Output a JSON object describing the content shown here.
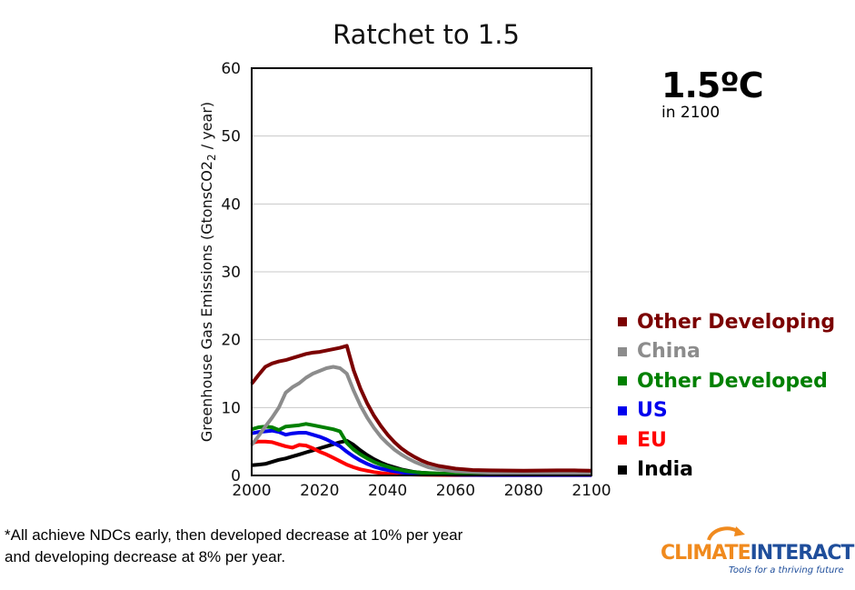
{
  "chart_data": {
    "type": "line",
    "title": "Ratchet to 1.5",
    "xlabel": "",
    "ylabel": "Greenhouse Gas Emissions  (GtonsCO2e / year)",
    "xlim": [
      2000,
      2100
    ],
    "ylim": [
      0,
      60
    ],
    "x_ticks": [
      "2000",
      "2020",
      "2040",
      "2060",
      "2080",
      "2100"
    ],
    "y_ticks": [
      "0",
      "10",
      "20",
      "30",
      "40",
      "50",
      "60"
    ],
    "grid": "horizontal",
    "legend_position": "right",
    "series": [
      {
        "name": "Other Developing",
        "color": "#7b0000",
        "points": [
          [
            2000,
            13.5
          ],
          [
            2002,
            14.8
          ],
          [
            2004,
            16
          ],
          [
            2006,
            16.5
          ],
          [
            2008,
            16.8
          ],
          [
            2010,
            17
          ],
          [
            2012,
            17.3
          ],
          [
            2014,
            17.6
          ],
          [
            2016,
            17.9
          ],
          [
            2018,
            18.1
          ],
          [
            2020,
            18.2
          ],
          [
            2022,
            18.4
          ],
          [
            2024,
            18.6
          ],
          [
            2026,
            18.8
          ],
          [
            2028,
            19.1
          ],
          [
            2030,
            15.5
          ],
          [
            2032,
            12.8
          ],
          [
            2034,
            10.6
          ],
          [
            2036,
            8.8
          ],
          [
            2038,
            7.3
          ],
          [
            2040,
            6
          ],
          [
            2042,
            4.9
          ],
          [
            2044,
            4
          ],
          [
            2046,
            3.3
          ],
          [
            2048,
            2.7
          ],
          [
            2050,
            2.2
          ],
          [
            2052,
            1.8
          ],
          [
            2055,
            1.4
          ],
          [
            2060,
            1
          ],
          [
            2065,
            0.8
          ],
          [
            2070,
            0.75
          ],
          [
            2080,
            0.7
          ],
          [
            2090,
            0.75
          ],
          [
            2095,
            0.75
          ],
          [
            2100,
            0.7
          ]
        ]
      },
      {
        "name": "China",
        "color": "#8c8c8c",
        "points": [
          [
            2000,
            4.5
          ],
          [
            2002,
            5.8
          ],
          [
            2004,
            7.2
          ],
          [
            2006,
            8.5
          ],
          [
            2008,
            10
          ],
          [
            2010,
            12.2
          ],
          [
            2012,
            13
          ],
          [
            2014,
            13.6
          ],
          [
            2016,
            14.4
          ],
          [
            2018,
            15
          ],
          [
            2020,
            15.4
          ],
          [
            2022,
            15.8
          ],
          [
            2024,
            16
          ],
          [
            2026,
            15.8
          ],
          [
            2028,
            15
          ],
          [
            2030,
            12.5
          ],
          [
            2032,
            10.3
          ],
          [
            2034,
            8.5
          ],
          [
            2036,
            7
          ],
          [
            2038,
            5.7
          ],
          [
            2040,
            4.7
          ],
          [
            2042,
            3.8
          ],
          [
            2044,
            3.1
          ],
          [
            2046,
            2.5
          ],
          [
            2048,
            2
          ],
          [
            2050,
            1.6
          ],
          [
            2052,
            1.2
          ],
          [
            2055,
            0.9
          ],
          [
            2060,
            0.6
          ],
          [
            2070,
            0.4
          ],
          [
            2080,
            0.4
          ],
          [
            2090,
            0.4
          ],
          [
            2100,
            0.4
          ]
        ]
      },
      {
        "name": "Other Developed",
        "color": "#008000",
        "points": [
          [
            2000,
            6.8
          ],
          [
            2002,
            7.1
          ],
          [
            2004,
            7.2
          ],
          [
            2006,
            7.1
          ],
          [
            2008,
            6.7
          ],
          [
            2010,
            7.2
          ],
          [
            2012,
            7.3
          ],
          [
            2014,
            7.4
          ],
          [
            2016,
            7.6
          ],
          [
            2018,
            7.4
          ],
          [
            2020,
            7.2
          ],
          [
            2022,
            7
          ],
          [
            2024,
            6.8
          ],
          [
            2026,
            6.5
          ],
          [
            2028,
            4.8
          ],
          [
            2030,
            3.8
          ],
          [
            2032,
            3.1
          ],
          [
            2034,
            2.5
          ],
          [
            2036,
            2
          ],
          [
            2038,
            1.6
          ],
          [
            2040,
            1.3
          ],
          [
            2042,
            1
          ],
          [
            2044,
            0.8
          ],
          [
            2046,
            0.6
          ],
          [
            2048,
            0.5
          ],
          [
            2050,
            0.4
          ],
          [
            2055,
            0.3
          ],
          [
            2060,
            0.25
          ],
          [
            2070,
            0.25
          ],
          [
            2080,
            0.25
          ],
          [
            2090,
            0.25
          ],
          [
            2100,
            0.25
          ]
        ]
      },
      {
        "name": "US",
        "color": "#0000ee",
        "points": [
          [
            2000,
            6.2
          ],
          [
            2002,
            6.4
          ],
          [
            2004,
            6.5
          ],
          [
            2006,
            6.6
          ],
          [
            2008,
            6.4
          ],
          [
            2010,
            6
          ],
          [
            2012,
            6.2
          ],
          [
            2014,
            6.3
          ],
          [
            2016,
            6.3
          ],
          [
            2018,
            6
          ],
          [
            2020,
            5.7
          ],
          [
            2022,
            5.3
          ],
          [
            2024,
            4.8
          ],
          [
            2026,
            4.3
          ],
          [
            2028,
            3.5
          ],
          [
            2030,
            2.8
          ],
          [
            2032,
            2.2
          ],
          [
            2034,
            1.7
          ],
          [
            2036,
            1.3
          ],
          [
            2038,
            1
          ],
          [
            2040,
            0.8
          ],
          [
            2042,
            0.6
          ],
          [
            2044,
            0.45
          ],
          [
            2046,
            0.35
          ],
          [
            2048,
            0.25
          ],
          [
            2050,
            0.2
          ],
          [
            2060,
            0.1
          ],
          [
            2070,
            0.05
          ],
          [
            2080,
            0.05
          ],
          [
            2090,
            0.05
          ],
          [
            2100,
            0.05
          ]
        ]
      },
      {
        "name": "EU",
        "color": "#ff0000",
        "points": [
          [
            2000,
            4.8
          ],
          [
            2002,
            5
          ],
          [
            2004,
            5
          ],
          [
            2006,
            4.9
          ],
          [
            2008,
            4.6
          ],
          [
            2010,
            4.3
          ],
          [
            2012,
            4.1
          ],
          [
            2014,
            4.5
          ],
          [
            2016,
            4.4
          ],
          [
            2018,
            4
          ],
          [
            2020,
            3.5
          ],
          [
            2022,
            3.1
          ],
          [
            2024,
            2.6
          ],
          [
            2026,
            2.1
          ],
          [
            2028,
            1.6
          ],
          [
            2030,
            1.2
          ],
          [
            2032,
            0.9
          ],
          [
            2034,
            0.7
          ],
          [
            2036,
            0.5
          ],
          [
            2038,
            0.35
          ],
          [
            2040,
            0.25
          ],
          [
            2045,
            0.15
          ],
          [
            2050,
            0.1
          ],
          [
            2060,
            0.05
          ],
          [
            2070,
            0.05
          ],
          [
            2080,
            0.05
          ],
          [
            2090,
            0.05
          ],
          [
            2100,
            0.05
          ]
        ]
      },
      {
        "name": "India",
        "color": "#000000",
        "points": [
          [
            2000,
            1.5
          ],
          [
            2002,
            1.6
          ],
          [
            2004,
            1.7
          ],
          [
            2006,
            2
          ],
          [
            2008,
            2.3
          ],
          [
            2010,
            2.5
          ],
          [
            2012,
            2.8
          ],
          [
            2014,
            3.1
          ],
          [
            2016,
            3.4
          ],
          [
            2018,
            3.7
          ],
          [
            2020,
            4
          ],
          [
            2022,
            4.3
          ],
          [
            2024,
            4.6
          ],
          [
            2026,
            4.9
          ],
          [
            2028,
            5.1
          ],
          [
            2030,
            4.5
          ],
          [
            2032,
            3.7
          ],
          [
            2034,
            3
          ],
          [
            2036,
            2.4
          ],
          [
            2038,
            1.9
          ],
          [
            2040,
            1.5
          ],
          [
            2042,
            1.2
          ],
          [
            2044,
            0.9
          ],
          [
            2046,
            0.7
          ],
          [
            2048,
            0.5
          ],
          [
            2050,
            0.4
          ],
          [
            2055,
            0.25
          ],
          [
            2060,
            0.15
          ],
          [
            2070,
            0.1
          ],
          [
            2080,
            0.1
          ],
          [
            2090,
            0.1
          ],
          [
            2100,
            0.1
          ]
        ]
      }
    ]
  },
  "temperature": {
    "value": "1.5ºC",
    "label": "in 2100"
  },
  "footnote": {
    "line1": "*All achieve NDCs early, then developed decrease at 10% per year",
    "line2": "and developing decrease at 8% per year."
  },
  "logo": {
    "word1": "CLIMATE",
    "word2": "INTERACTIVE",
    "tagline": "Tools for a thriving future"
  }
}
